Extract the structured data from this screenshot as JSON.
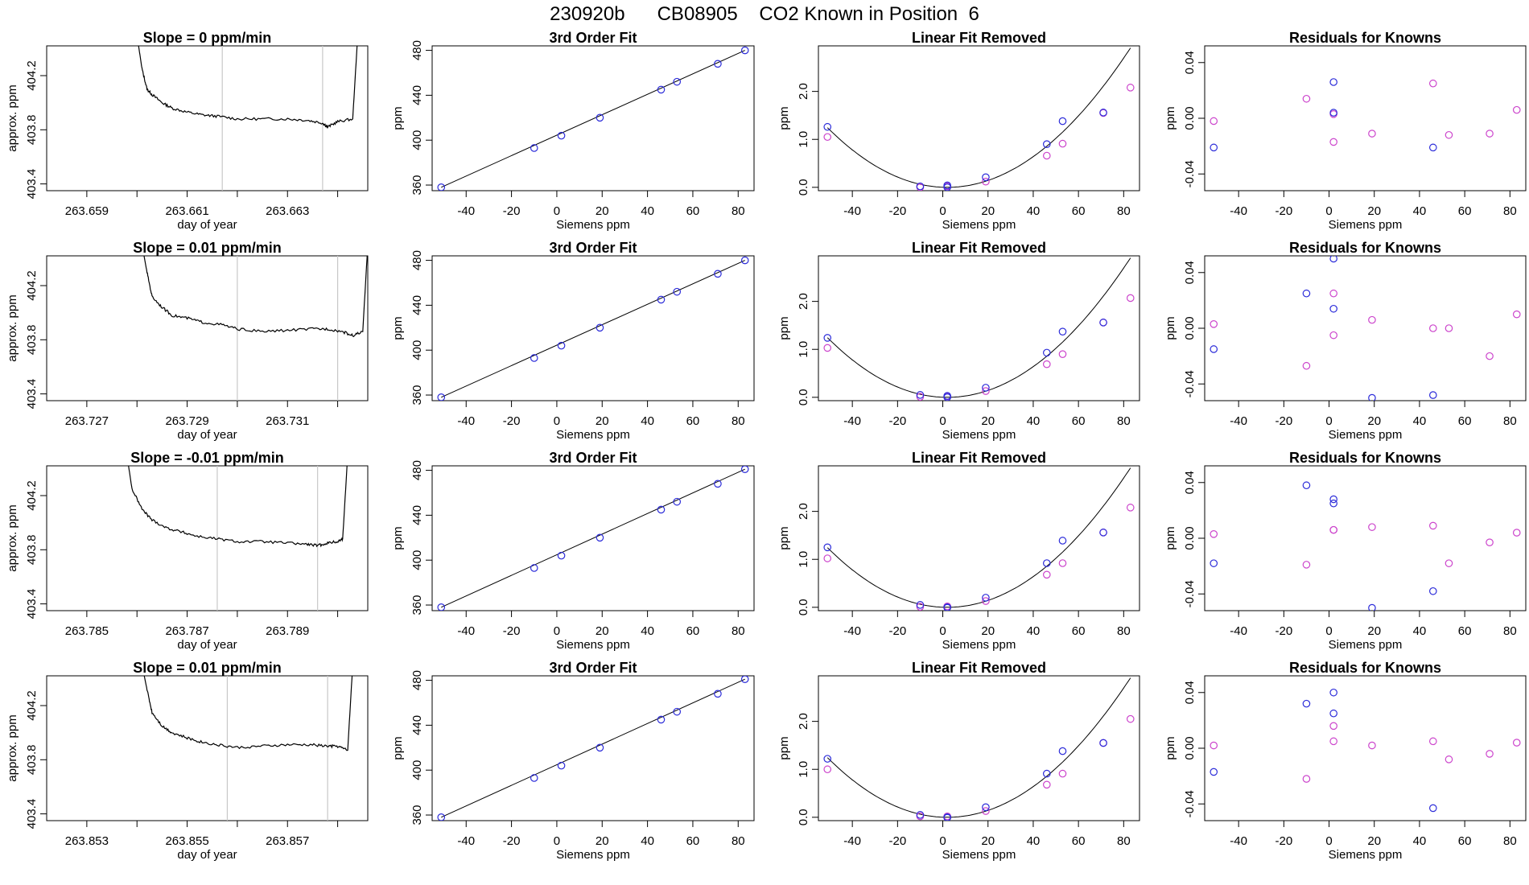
{
  "page_title": "230920b      CB08905    CO2 Known in Position  6",
  "colors": {
    "axis": "#000000",
    "marker_fit": "#2b2bd9",
    "marker_known": "#cc44cc",
    "vline": "#c8c8c8",
    "trace": "#000000"
  },
  "labels": {
    "fit_title": "3rd Order Fit",
    "lin_title": "Linear Fit Removed",
    "res_title": "Residuals for Knowns",
    "siemens_xlabel": "Siemens ppm",
    "ppm_ylabel": "ppm",
    "approx_ylabel": "approx. ppm",
    "doy_xlabel": "day of year"
  },
  "chart_data": [
    {
      "type": "line",
      "title": "Slope =  0  ppm/min",
      "xlabel": "day of year",
      "ylabel": "approx. ppm",
      "xlim": [
        263.6582,
        263.6646
      ],
      "ylim": [
        403.35,
        404.42
      ],
      "xticks": [
        "263.659",
        "263.661",
        "263.663"
      ],
      "xtick_minor": [
        263.66,
        263.662,
        263.664
      ],
      "yticks": [
        "403.4",
        "403.8",
        "404.2"
      ],
      "vlines": [
        263.6617,
        263.6637
      ],
      "trace_x": [
        263.66,
        263.6601,
        263.6602,
        263.6603,
        263.6605,
        263.6607,
        263.661,
        263.6613,
        263.6616,
        263.662,
        263.6625,
        263.663,
        263.6634,
        263.6637,
        263.6638,
        263.664,
        263.6643,
        263.6644
      ],
      "trace_y": [
        404.5,
        404.25,
        404.1,
        404.06,
        404.0,
        403.96,
        403.93,
        403.91,
        403.9,
        403.88,
        403.88,
        403.88,
        403.87,
        403.85,
        403.82,
        403.86,
        403.88,
        404.5
      ]
    },
    {
      "type": "scatter",
      "title": "3rd Order Fit",
      "xlabel": "Siemens ppm",
      "ylabel": "ppm",
      "xlim": [
        -55,
        87
      ],
      "ylim": [
        355,
        484
      ],
      "xticks": [
        -40,
        -20,
        0,
        20,
        40,
        60,
        80
      ],
      "yticks": [
        360,
        400,
        440,
        480
      ],
      "points": [
        [
          -51,
          358
        ],
        [
          -10,
          393
        ],
        [
          2,
          404
        ],
        [
          19,
          420
        ],
        [
          46,
          445
        ],
        [
          53,
          452
        ],
        [
          71,
          468
        ],
        [
          83,
          480
        ]
      ],
      "fit_line": [
        [
          -51,
          358
        ],
        [
          83,
          480
        ]
      ]
    },
    {
      "type": "scatter",
      "title": "Linear Fit Removed",
      "xlabel": "Siemens ppm",
      "ylabel": "ppm",
      "xlim": [
        -55,
        87
      ],
      "ylim": [
        -0.07,
        2.95
      ],
      "xticks": [
        -40,
        -20,
        0,
        20,
        40,
        60,
        80
      ],
      "yticks": [
        "0.0",
        "1.0",
        "2.0"
      ],
      "curve": {
        "vertex_x": 2,
        "a": 0.000443,
        "from": -51,
        "to": 83
      },
      "fit_points": [
        [
          -51,
          1.26
        ],
        [
          -10,
          0.02
        ],
        [
          2,
          0.0
        ],
        [
          2,
          0.04
        ],
        [
          19,
          0.21
        ],
        [
          46,
          0.9
        ],
        [
          53,
          1.38
        ],
        [
          71,
          1.56
        ]
      ],
      "known_points": [
        [
          -51,
          1.05
        ],
        [
          -10,
          0.0
        ],
        [
          2,
          0.02
        ],
        [
          19,
          0.12
        ],
        [
          46,
          0.66
        ],
        [
          53,
          0.91
        ],
        [
          71,
          1.55
        ],
        [
          83,
          2.08
        ]
      ]
    },
    {
      "type": "scatter",
      "title": "Residuals for Knowns",
      "xlabel": "Siemens ppm",
      "ylabel": "ppm",
      "xlim": [
        -55,
        87
      ],
      "ylim": [
        -0.052,
        0.052
      ],
      "xticks": [
        -40,
        -20,
        0,
        20,
        40,
        60,
        80
      ],
      "yticks": [
        "-0.04",
        "0.00",
        "0.04"
      ],
      "fit_points": [
        [
          -51,
          -0.021
        ],
        [
          2,
          0.026
        ],
        [
          2,
          0.004
        ],
        [
          46,
          -0.021
        ]
      ],
      "known_points": [
        [
          -51,
          -0.002
        ],
        [
          -10,
          0.014
        ],
        [
          2,
          -0.017
        ],
        [
          2,
          0.003
        ],
        [
          19,
          -0.011
        ],
        [
          46,
          0.025
        ],
        [
          53,
          -0.012
        ],
        [
          71,
          -0.011
        ],
        [
          83,
          0.006
        ]
      ]
    },
    {
      "type": "line",
      "title": "Slope =  0.01  ppm/min",
      "xlabel": "day of year",
      "ylabel": "approx. ppm",
      "xlim": [
        263.7262,
        263.7326
      ],
      "ylim": [
        403.35,
        404.42
      ],
      "xticks": [
        "263.727",
        "263.729",
        "263.731"
      ],
      "xtick_minor": [
        263.728,
        263.73,
        263.732
      ],
      "yticks": [
        "403.4",
        "403.8",
        "404.2"
      ],
      "vlines": [
        263.73,
        263.732
      ],
      "trace_x": [
        263.7281,
        263.7282,
        263.7283,
        263.7285,
        263.7287,
        263.729,
        263.7293,
        263.7297,
        263.73,
        263.7305,
        263.731,
        263.7315,
        263.7318,
        263.7321,
        263.7323,
        263.7325,
        263.7326
      ],
      "trace_y": [
        404.5,
        404.3,
        404.12,
        404.04,
        403.98,
        403.96,
        403.93,
        403.91,
        403.88,
        403.86,
        403.87,
        403.88,
        403.88,
        403.86,
        403.83,
        403.86,
        404.5
      ]
    },
    {
      "type": "scatter",
      "title": "3rd Order Fit",
      "xlabel": "Siemens ppm",
      "ylabel": "ppm",
      "xlim": [
        -55,
        87
      ],
      "ylim": [
        355,
        484
      ],
      "xticks": [
        -40,
        -20,
        0,
        20,
        40,
        60,
        80
      ],
      "yticks": [
        360,
        400,
        440,
        480
      ],
      "points": [
        [
          -51,
          358
        ],
        [
          -10,
          393
        ],
        [
          2,
          404
        ],
        [
          19,
          420
        ],
        [
          46,
          445
        ],
        [
          53,
          452
        ],
        [
          71,
          468
        ],
        [
          83,
          480
        ]
      ],
      "fit_line": [
        [
          -51,
          358
        ],
        [
          83,
          480
        ]
      ]
    },
    {
      "type": "scatter",
      "title": "Linear Fit Removed",
      "xlabel": "Siemens ppm",
      "ylabel": "ppm",
      "xlim": [
        -55,
        87
      ],
      "ylim": [
        -0.07,
        2.95
      ],
      "xticks": [
        -40,
        -20,
        0,
        20,
        40,
        60,
        80
      ],
      "yticks": [
        "0.0",
        "1.0",
        "2.0"
      ],
      "curve": {
        "vertex_x": 2,
        "a": 0.000443,
        "from": -51,
        "to": 83
      },
      "fit_points": [
        [
          -51,
          1.24
        ],
        [
          -10,
          0.05
        ],
        [
          2,
          0.0
        ],
        [
          2,
          0.03
        ],
        [
          19,
          0.2
        ],
        [
          46,
          0.93
        ],
        [
          53,
          1.37
        ],
        [
          71,
          1.56
        ]
      ],
      "known_points": [
        [
          -51,
          1.03
        ],
        [
          -10,
          0.01
        ],
        [
          2,
          0.02
        ],
        [
          19,
          0.13
        ],
        [
          46,
          0.69
        ],
        [
          53,
          0.9
        ],
        [
          71,
          1.56
        ],
        [
          83,
          2.07
        ]
      ]
    },
    {
      "type": "scatter",
      "title": "Residuals for Knowns",
      "xlabel": "Siemens ppm",
      "ylabel": "ppm",
      "xlim": [
        -55,
        87
      ],
      "ylim": [
        -0.052,
        0.052
      ],
      "xticks": [
        -40,
        -20,
        0,
        20,
        40,
        60,
        80
      ],
      "yticks": [
        "-0.04",
        "0.00",
        "0.04"
      ],
      "fit_points": [
        [
          -51,
          -0.015
        ],
        [
          -10,
          0.025
        ],
        [
          2,
          0.05
        ],
        [
          2,
          0.014
        ],
        [
          19,
          -0.05
        ],
        [
          46,
          -0.048
        ]
      ],
      "known_points": [
        [
          -51,
          0.003
        ],
        [
          -10,
          -0.027
        ],
        [
          2,
          -0.005
        ],
        [
          2,
          0.025
        ],
        [
          19,
          0.006
        ],
        [
          46,
          0.0
        ],
        [
          53,
          0.0
        ],
        [
          71,
          -0.02
        ],
        [
          83,
          0.01
        ]
      ]
    },
    {
      "type": "line",
      "title": "Slope =  -0.01  ppm/min",
      "xlabel": "day of year",
      "ylabel": "approx. ppm",
      "xlim": [
        263.7842,
        263.7906
      ],
      "ylim": [
        403.35,
        404.42
      ],
      "xticks": [
        "263.785",
        "263.787",
        "263.789"
      ],
      "xtick_minor": [
        263.786,
        263.788,
        263.79
      ],
      "yticks": [
        "403.4",
        "403.8",
        "404.2"
      ],
      "vlines": [
        263.7876,
        263.7896
      ],
      "trace_x": [
        263.7858,
        263.7859,
        263.7861,
        263.7863,
        263.7866,
        263.7869,
        263.7872,
        263.7876,
        263.788,
        263.7885,
        263.789,
        263.7894,
        263.7896,
        263.7898,
        263.79,
        263.7901,
        263.7902
      ],
      "trace_y": [
        404.5,
        404.25,
        404.1,
        404.02,
        403.96,
        403.93,
        403.9,
        403.88,
        403.86,
        403.86,
        403.85,
        403.84,
        403.83,
        403.85,
        403.86,
        403.88,
        404.5
      ]
    },
    {
      "type": "scatter",
      "title": "3rd Order Fit",
      "xlabel": "Siemens ppm",
      "ylabel": "ppm",
      "xlim": [
        -55,
        87
      ],
      "ylim": [
        355,
        484
      ],
      "xticks": [
        -40,
        -20,
        0,
        20,
        40,
        60,
        80
      ],
      "yticks": [
        360,
        400,
        440,
        480
      ],
      "points": [
        [
          -51,
          358
        ],
        [
          -10,
          393
        ],
        [
          2,
          404
        ],
        [
          19,
          420
        ],
        [
          46,
          445
        ],
        [
          53,
          452
        ],
        [
          71,
          468
        ],
        [
          83,
          481
        ]
      ],
      "fit_line": [
        [
          -51,
          358
        ],
        [
          83,
          481
        ]
      ]
    },
    {
      "type": "scatter",
      "title": "Linear Fit Removed",
      "xlabel": "Siemens ppm",
      "ylabel": "ppm",
      "xlim": [
        -55,
        87
      ],
      "ylim": [
        -0.07,
        2.95
      ],
      "xticks": [
        -40,
        -20,
        0,
        20,
        40,
        60,
        80
      ],
      "yticks": [
        "0.0",
        "1.0",
        "2.0"
      ],
      "curve": {
        "vertex_x": 2,
        "a": 0.000443,
        "from": -51,
        "to": 83
      },
      "fit_points": [
        [
          -51,
          1.25
        ],
        [
          -10,
          0.05
        ],
        [
          2,
          0.0
        ],
        [
          2,
          -0.01
        ],
        [
          19,
          0.2
        ],
        [
          46,
          0.92
        ],
        [
          53,
          1.39
        ],
        [
          71,
          1.56
        ]
      ],
      "known_points": [
        [
          -51,
          1.02
        ],
        [
          -10,
          0.01
        ],
        [
          2,
          0.02
        ],
        [
          19,
          0.13
        ],
        [
          46,
          0.68
        ],
        [
          53,
          0.92
        ],
        [
          71,
          1.56
        ],
        [
          83,
          2.08
        ]
      ]
    },
    {
      "type": "scatter",
      "title": "Residuals for Knowns",
      "xlabel": "Siemens ppm",
      "ylabel": "ppm",
      "xlim": [
        -55,
        87
      ],
      "ylim": [
        -0.052,
        0.052
      ],
      "xticks": [
        -40,
        -20,
        0,
        20,
        40,
        60,
        80
      ],
      "yticks": [
        "-0.04",
        "0.00",
        "0.04"
      ],
      "fit_points": [
        [
          -51,
          -0.018
        ],
        [
          -10,
          0.038
        ],
        [
          2,
          0.028
        ],
        [
          2,
          0.025
        ],
        [
          19,
          -0.05
        ],
        [
          46,
          -0.038
        ]
      ],
      "known_points": [
        [
          -51,
          0.003
        ],
        [
          -10,
          -0.019
        ],
        [
          2,
          0.006
        ],
        [
          2,
          0.006
        ],
        [
          19,
          0.008
        ],
        [
          46,
          0.009
        ],
        [
          53,
          -0.018
        ],
        [
          71,
          -0.003
        ],
        [
          83,
          0.004
        ]
      ]
    },
    {
      "type": "line",
      "title": "Slope =  0.01  ppm/min",
      "xlabel": "day of year",
      "ylabel": "approx. ppm",
      "xlim": [
        263.8522,
        263.8586
      ],
      "ylim": [
        403.35,
        404.42
      ],
      "xticks": [
        "263.853",
        "263.855",
        "263.857"
      ],
      "xtick_minor": [
        263.854,
        263.856,
        263.858
      ],
      "yticks": [
        "403.4",
        "403.8",
        "404.2"
      ],
      "vlines": [
        263.8558,
        263.8578
      ],
      "trace_x": [
        263.8541,
        263.8542,
        263.8543,
        263.8545,
        263.8547,
        263.855,
        263.8553,
        263.8556,
        263.856,
        263.8565,
        263.857,
        263.8575,
        263.8578,
        263.858,
        263.8582,
        263.8583
      ],
      "trace_y": [
        404.5,
        404.32,
        404.15,
        404.05,
        404.0,
        403.96,
        403.93,
        403.91,
        403.89,
        403.9,
        403.91,
        403.91,
        403.9,
        403.9,
        403.87,
        404.5
      ]
    },
    {
      "type": "scatter",
      "title": "3rd Order Fit",
      "xlabel": "Siemens ppm",
      "ylabel": "ppm",
      "xlim": [
        -55,
        87
      ],
      "ylim": [
        355,
        484
      ],
      "xticks": [
        -40,
        -20,
        0,
        20,
        40,
        60,
        80
      ],
      "yticks": [
        360,
        400,
        440,
        480
      ],
      "points": [
        [
          -51,
          358
        ],
        [
          -10,
          393
        ],
        [
          2,
          404
        ],
        [
          19,
          420
        ],
        [
          46,
          445
        ],
        [
          53,
          452
        ],
        [
          71,
          468
        ],
        [
          83,
          481
        ]
      ],
      "fit_line": [
        [
          -51,
          358
        ],
        [
          83,
          481
        ]
      ]
    },
    {
      "type": "scatter",
      "title": "Linear Fit Removed",
      "xlabel": "Siemens ppm",
      "ylabel": "ppm",
      "xlim": [
        -55,
        87
      ],
      "ylim": [
        -0.07,
        2.95
      ],
      "xticks": [
        -40,
        -20,
        0,
        20,
        40,
        60,
        80
      ],
      "yticks": [
        "0.0",
        "1.0",
        "2.0"
      ],
      "curve": {
        "vertex_x": 2,
        "a": 0.000443,
        "from": -51,
        "to": 83
      },
      "fit_points": [
        [
          -51,
          1.22
        ],
        [
          -10,
          0.05
        ],
        [
          2,
          0.0
        ],
        [
          2,
          -0.01
        ],
        [
          19,
          0.21
        ],
        [
          46,
          0.91
        ],
        [
          53,
          1.38
        ],
        [
          71,
          1.55
        ]
      ],
      "known_points": [
        [
          -51,
          1.0
        ],
        [
          -10,
          0.02
        ],
        [
          2,
          0.02
        ],
        [
          19,
          0.13
        ],
        [
          46,
          0.68
        ],
        [
          53,
          0.91
        ],
        [
          71,
          1.55
        ],
        [
          83,
          2.05
        ]
      ]
    },
    {
      "type": "scatter",
      "title": "Residuals for Knowns",
      "xlabel": "Siemens ppm",
      "ylabel": "ppm",
      "xlim": [
        -55,
        87
      ],
      "ylim": [
        -0.052,
        0.052
      ],
      "xticks": [
        -40,
        -20,
        0,
        20,
        40,
        60,
        80
      ],
      "yticks": [
        "-0.04",
        "0.00",
        "0.04"
      ],
      "fit_points": [
        [
          -51,
          -0.017
        ],
        [
          -10,
          0.032
        ],
        [
          2,
          0.04
        ],
        [
          2,
          0.025
        ],
        [
          46,
          -0.043
        ]
      ],
      "known_points": [
        [
          -51,
          0.002
        ],
        [
          -10,
          -0.022
        ],
        [
          2,
          0.016
        ],
        [
          2,
          0.005
        ],
        [
          19,
          0.002
        ],
        [
          46,
          0.005
        ],
        [
          53,
          -0.008
        ],
        [
          71,
          -0.004
        ],
        [
          83,
          0.004
        ]
      ]
    }
  ]
}
